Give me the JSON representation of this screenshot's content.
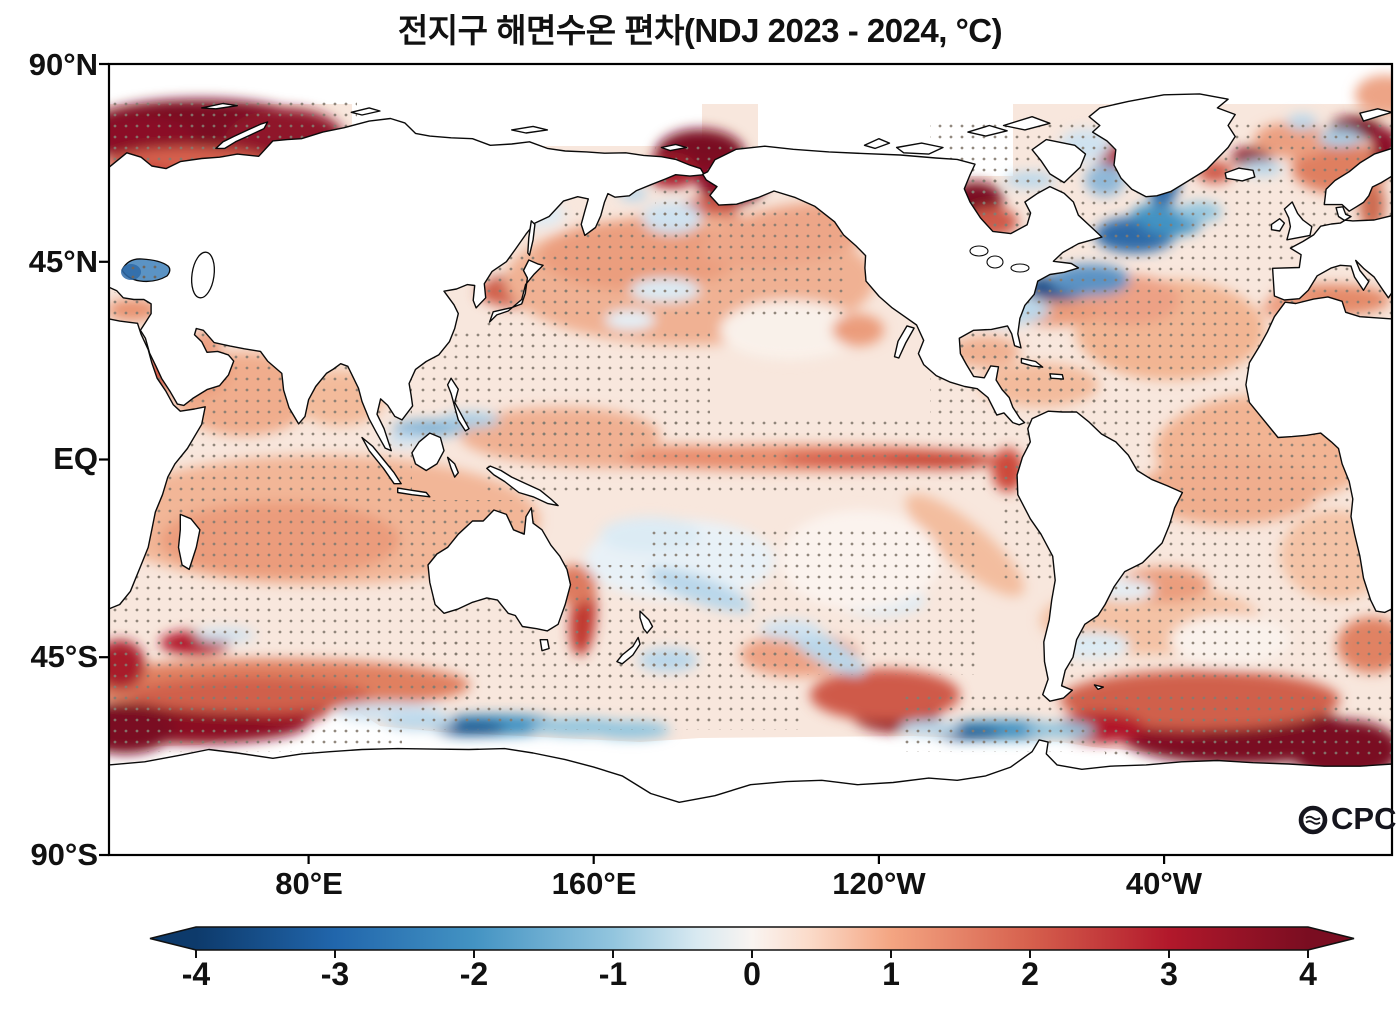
{
  "title": "전지구 해면수온 편차(NDJ 2023 - 2024, °C)",
  "axes": {
    "lat": [
      "90°N",
      "45°N",
      "EQ",
      "45°S",
      "90°S"
    ],
    "lon": [
      "80°E",
      "160°E",
      "120°W",
      "40°W"
    ]
  },
  "colorbar": {
    "tick_labels": [
      "-4",
      "-3",
      "-2",
      "-1",
      "0",
      "1",
      "2",
      "3",
      "4"
    ],
    "min": -4,
    "max": 4,
    "units": "°C",
    "gradient": [
      "#0d3a6b",
      "#2166ac",
      "#4393c3",
      "#92c5de",
      "#d8e9f1",
      "#f9f4f1",
      "#fbdccb",
      "#f4a582",
      "#d6604d",
      "#b2182b",
      "#7a0d21"
    ],
    "gradient_offsets": [
      0,
      0.125,
      0.25,
      0.375,
      0.45,
      0.5,
      0.55,
      0.625,
      0.75,
      0.875,
      1
    ]
  },
  "logo": {
    "text": "CPC"
  },
  "chart_data": {
    "type": "heatmap",
    "title": "전지구 해면수온 편차(NDJ 2023 - 2024, °C)",
    "variable": "sea surface temperature anomaly",
    "period": "NDJ 2023 - 2024",
    "units": "°C",
    "projection": "equirectangular world map, longitude range 24°E eastward to 24°E (360°)",
    "xlabel_ticks": [
      "80°E",
      "160°E",
      "120°W",
      "40°W"
    ],
    "ylabel_ticks": [
      "90°N",
      "45°N",
      "EQ",
      "45°S",
      "90°S"
    ],
    "colorbar_range": [
      -4,
      4
    ],
    "colorbar_ticks": [
      -4,
      -3,
      -2,
      -1,
      0,
      1,
      2,
      3,
      4
    ],
    "stippling": "small gray dots over most ocean regions (statistical significance)",
    "land_color": "white with black coastlines",
    "notable_anomalies": [
      {
        "region": "Equatorial Pacific El Nino band (160E-80W)",
        "value_c": 2.0
      },
      {
        "region": "Nino 1+2 coastal Peru",
        "value_c": 2.5
      },
      {
        "region": "Barents / Kara Seas (Arctic)",
        "value_c": 4.0
      },
      {
        "region": "Chukchi Sea / Bering Strait",
        "value_c": 4.0
      },
      {
        "region": "Sea of Japan and Kuroshio spots east of Japan",
        "value_c": 3.5
      },
      {
        "region": "Northwest Hudson Bay / Foxe Basin",
        "value_c": 4.0
      },
      {
        "region": "Northwest Atlantic cold blob off NE United States",
        "value_c": -2.5
      },
      {
        "region": "Subpolar North Atlantic south of Greenland",
        "value_c": -2.0
      },
      {
        "region": "Black Sea",
        "value_c": -2.0
      },
      {
        "region": "Southern Ocean south of Australia (~60S)",
        "value_c": -1.5
      },
      {
        "region": "Drake Passage (~60S)",
        "value_c": -1.5
      },
      {
        "region": "Southwest Indian Ocean (~55S)",
        "value_c": 4.0
      },
      {
        "region": "South Atlantic / Scotia Sea (55-65S)",
        "value_c": 4.0
      },
      {
        "region": "Southeast Pacific (~55S)",
        "value_c": 3.5
      },
      {
        "region": "Indian Ocean basin-wide warmth",
        "value_c": 1.0
      },
      {
        "region": "North Pacific basin warmth",
        "value_c": 1.5
      },
      {
        "region": "North and tropical Atlantic warmth",
        "value_c": 1.0
      },
      {
        "region": "Mediterranean Sea",
        "value_c": 1.5
      },
      {
        "region": "Tasman Sea east of Australia",
        "value_c": 2.0
      }
    ]
  }
}
